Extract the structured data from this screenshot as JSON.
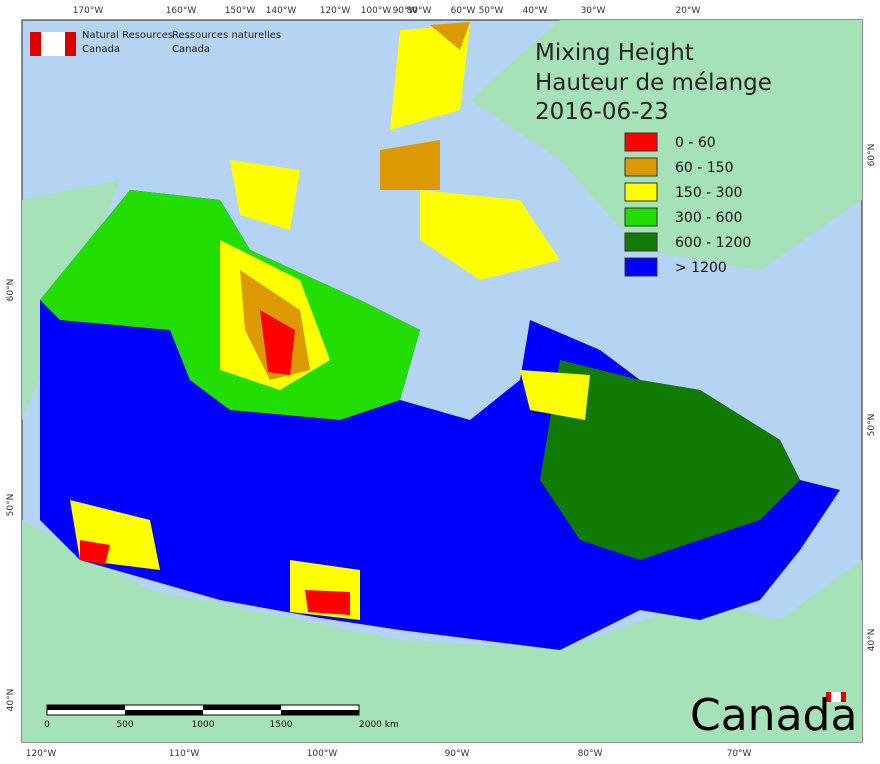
{
  "header": {
    "agency_en": "Natural Resources",
    "agency_en_2": "Canada",
    "agency_fr": "Ressources naturelles",
    "agency_fr_2": "Canada"
  },
  "title": {
    "line1": "Mixing Height",
    "line2": "Hauteur de mélange",
    "date": "2016-06-23"
  },
  "legend": [
    {
      "label": "0 - 60",
      "color": "#ff0000"
    },
    {
      "label": "60 - 150",
      "color": "#dd9900"
    },
    {
      "label": "150 - 300",
      "color": "#ffff00"
    },
    {
      "label": "300 - 600",
      "color": "#22dd00"
    },
    {
      "label": "600 - 1200",
      "color": "#117a00"
    },
    {
      "label": "> 1200",
      "color": "#0000ff"
    }
  ],
  "graticule": {
    "top": [
      "170°W",
      "160°W",
      "150°W",
      "140°W",
      "120°W",
      "100°W",
      "90°W",
      "80°W",
      "60°W",
      "50°W",
      "40°W",
      "30°W",
      "20°W"
    ],
    "bottom": [
      "120°W",
      "110°W",
      "100°W",
      "90°W",
      "80°W",
      "70°W"
    ],
    "left": [
      "60°N",
      "50°N",
      "40°N"
    ],
    "right": [
      "60°N",
      "50°N",
      "40°N"
    ]
  },
  "scale_bar": [
    "0",
    "500",
    "1000",
    "1500",
    "2000 km"
  ],
  "wordmark": "Canada"
}
